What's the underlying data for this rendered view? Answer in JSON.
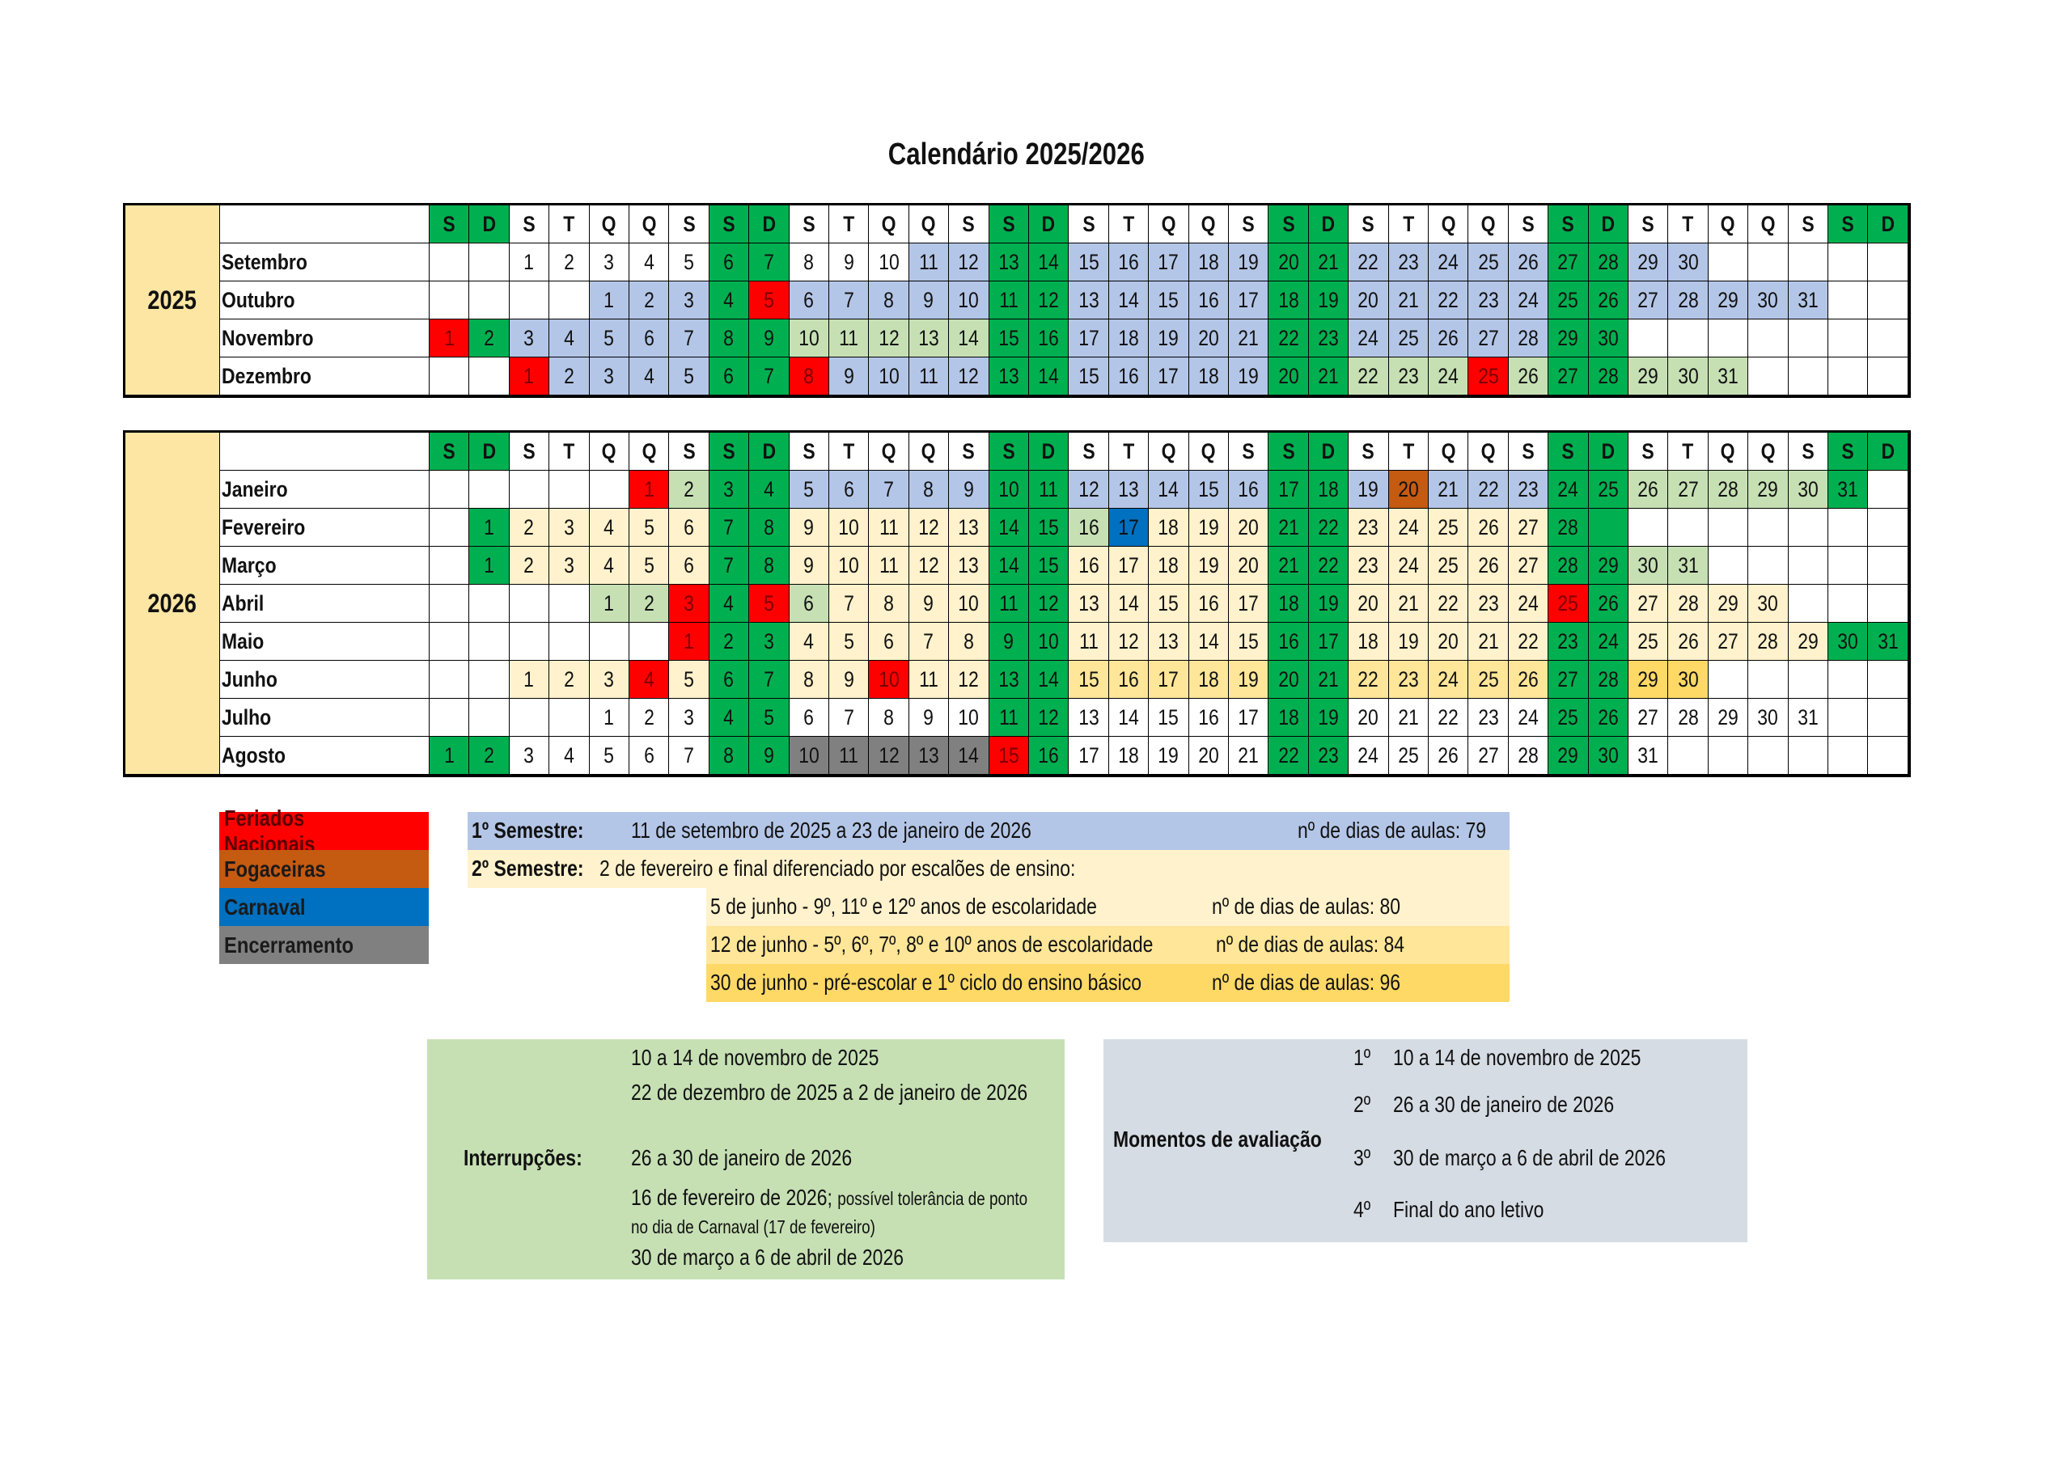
{
  "title": "Calendário 2025/2026",
  "weekdays": [
    "S",
    "D",
    "S",
    "T",
    "Q",
    "Q",
    "S",
    "S",
    "D",
    "S",
    "T",
    "Q",
    "Q",
    "S",
    "S",
    "D",
    "S",
    "T",
    "Q",
    "Q",
    "S",
    "S",
    "D",
    "S",
    "T",
    "Q",
    "Q",
    "S",
    "S",
    "D",
    "S",
    "T",
    "Q",
    "Q",
    "S",
    "S",
    "D"
  ],
  "header_fills": "ggwwwwwggwwwwwggwwwwwggwwwwwggwwwwwgg",
  "palette": {
    "w": "#ffffff",
    "g": "#00b050",
    "b": "#b4c6e7",
    "l": "#c6e0b4",
    "r": "#ff0000",
    "o": "#c55a11",
    "c": "#0070c0",
    "k": "#808080",
    "y": "#fff2cc",
    "m": "#ffe699",
    "d": "#ffd966"
  },
  "years": [
    {
      "year": "2025",
      "months": [
        {
          "name": "Setembro",
          "days": [
            null,
            null,
            1,
            2,
            3,
            4,
            5,
            6,
            7,
            8,
            9,
            10,
            11,
            12,
            13,
            14,
            15,
            16,
            17,
            18,
            19,
            20,
            21,
            22,
            23,
            24,
            25,
            26,
            27,
            28,
            29,
            30,
            null,
            null,
            null,
            null,
            null
          ],
          "fills": "wwwwwwwggwwwbbggbbbbbggbbbbbggbbwwwww"
        },
        {
          "name": "Outubro",
          "days": [
            null,
            null,
            null,
            null,
            1,
            2,
            3,
            4,
            5,
            6,
            7,
            8,
            9,
            10,
            11,
            12,
            13,
            14,
            15,
            16,
            17,
            18,
            19,
            20,
            21,
            22,
            23,
            24,
            25,
            26,
            27,
            28,
            29,
            30,
            31,
            null,
            null
          ],
          "fills": "wwwwbbbgrbbbbbggbbbbbggbbbbbggbbbbbww"
        },
        {
          "name": "Novembro",
          "days": [
            1,
            2,
            3,
            4,
            5,
            6,
            7,
            8,
            9,
            10,
            11,
            12,
            13,
            14,
            15,
            16,
            17,
            18,
            19,
            20,
            21,
            22,
            23,
            24,
            25,
            26,
            27,
            28,
            29,
            30,
            null,
            null,
            null,
            null,
            null,
            null,
            null
          ],
          "fills": "rgbbbbbgglllllggbbbbbggbbbbbggwwwwwww"
        },
        {
          "name": "Dezembro",
          "days": [
            null,
            null,
            1,
            2,
            3,
            4,
            5,
            6,
            7,
            8,
            9,
            10,
            11,
            12,
            13,
            14,
            15,
            16,
            17,
            18,
            19,
            20,
            21,
            22,
            23,
            24,
            25,
            26,
            27,
            28,
            29,
            30,
            31,
            null,
            null,
            null,
            null
          ],
          "fills": "wwrbbbbggrbbbbggbbbbbgglllrlgglllwwww"
        }
      ]
    },
    {
      "year": "2026",
      "months": [
        {
          "name": "Janeiro",
          "days": [
            null,
            null,
            null,
            null,
            null,
            1,
            2,
            3,
            4,
            5,
            6,
            7,
            8,
            9,
            10,
            11,
            12,
            13,
            14,
            15,
            16,
            17,
            18,
            19,
            20,
            21,
            22,
            23,
            24,
            25,
            26,
            27,
            28,
            29,
            30,
            31,
            null
          ],
          "fills": "wwwwwrlggbbbbbggbbbbbggbobbbgglllllgw"
        },
        {
          "name": "Fevereiro",
          "days": [
            null,
            1,
            2,
            3,
            4,
            5,
            6,
            7,
            8,
            9,
            10,
            11,
            12,
            13,
            14,
            15,
            16,
            17,
            18,
            19,
            20,
            21,
            22,
            23,
            24,
            25,
            26,
            27,
            28,
            null,
            null,
            null,
            null,
            null,
            null,
            null,
            null
          ],
          "fills": "wgyyyyyggyyyyygglcyyyggyyyyyggwwwwwww"
        },
        {
          "name": "Março",
          "days": [
            null,
            1,
            2,
            3,
            4,
            5,
            6,
            7,
            8,
            9,
            10,
            11,
            12,
            13,
            14,
            15,
            16,
            17,
            18,
            19,
            20,
            21,
            22,
            23,
            24,
            25,
            26,
            27,
            28,
            29,
            30,
            31,
            null,
            null,
            null,
            null,
            null
          ],
          "fills": "wgyyyyyggyyyyyggyyyyyggyyyyyggllwwwww"
        },
        {
          "name": "Abril",
          "days": [
            null,
            null,
            null,
            null,
            1,
            2,
            3,
            4,
            5,
            6,
            7,
            8,
            9,
            10,
            11,
            12,
            13,
            14,
            15,
            16,
            17,
            18,
            19,
            20,
            21,
            22,
            23,
            24,
            25,
            26,
            27,
            28,
            29,
            30,
            null,
            null,
            null
          ],
          "fills": "wwwwllrgrlyyyyggyyyyyggyyyyyrgyyyywww"
        },
        {
          "name": "Maio",
          "days": [
            null,
            null,
            null,
            null,
            null,
            null,
            1,
            2,
            3,
            4,
            5,
            6,
            7,
            8,
            9,
            10,
            11,
            12,
            13,
            14,
            15,
            16,
            17,
            18,
            19,
            20,
            21,
            22,
            23,
            24,
            25,
            26,
            27,
            28,
            29,
            30,
            31
          ],
          "fills": "wwwwwwrggyyyyyggyyyyyggyyyyyggyyyyygg"
        },
        {
          "name": "Junho",
          "days": [
            null,
            null,
            1,
            2,
            3,
            4,
            5,
            6,
            7,
            8,
            9,
            10,
            11,
            12,
            13,
            14,
            15,
            16,
            17,
            18,
            19,
            20,
            21,
            22,
            23,
            24,
            25,
            26,
            27,
            28,
            29,
            30,
            null,
            null,
            null,
            null,
            null
          ],
          "fills": "wwyyyryggyyryyggmmmmmggmmmmmggddwwwww"
        },
        {
          "name": "Julho",
          "days": [
            null,
            null,
            null,
            null,
            1,
            2,
            3,
            4,
            5,
            6,
            7,
            8,
            9,
            10,
            11,
            12,
            13,
            14,
            15,
            16,
            17,
            18,
            19,
            20,
            21,
            22,
            23,
            24,
            25,
            26,
            27,
            28,
            29,
            30,
            31,
            null,
            null
          ],
          "fills": "wwwwwwwggwwwwwggwwwwwggwwwwwggwwwwwww"
        },
        {
          "name": "Agosto",
          "days": [
            1,
            2,
            3,
            4,
            5,
            6,
            7,
            8,
            9,
            10,
            11,
            12,
            13,
            14,
            15,
            16,
            17,
            18,
            19,
            20,
            21,
            22,
            23,
            24,
            25,
            26,
            27,
            28,
            29,
            30,
            31,
            null,
            null,
            null,
            null,
            null,
            null
          ],
          "fills": "ggwwwwwggkkkkkrgwwwwwggwwwwwggwwwwwww"
        }
      ]
    }
  ],
  "legend": [
    {
      "label": "Feriados Nacionais",
      "color": "#ff0000"
    },
    {
      "label": "Fogaceiras",
      "color": "#c55a11"
    },
    {
      "label": "Carnaval",
      "color": "#0070c0"
    },
    {
      "label": "Encerramento",
      "color": "#808080"
    }
  ],
  "semesters": {
    "first": {
      "label": "1º Semestre:",
      "text": "11 de setembro de 2025 a 23 de janeiro de 2026",
      "days": "nº de dias de aulas: 79"
    },
    "second": {
      "label": "2º Semestre:",
      "text": "2 de fevereiro e final diferenciado por escalões de ensino:"
    },
    "endings": [
      {
        "text": "5 de junho - 9º, 11º e 12º anos de escolaridade",
        "days": "nº de dias de aulas: 80"
      },
      {
        "text": "12 de junho - 5º, 6º, 7º, 8º e 10º anos de escolaridade",
        "days": "nº de dias de aulas: 84"
      },
      {
        "text": "30 de junho - pré-escolar e 1º ciclo do ensino básico",
        "days": "nº de dias de aulas: 96"
      }
    ]
  },
  "interruptions": {
    "label": "Interrupções:",
    "items": [
      "10 a 14 de novembro de 2025",
      "22 de dezembro de 2025 a 2 de janeiro de 2026",
      "26 a 30 de janeiro de 2026",
      {
        "text": "16 de fevereiro de 2026;",
        "note": "possível tolerância de ponto no dia de Carnaval (17 de fevereiro)"
      },
      "30 de março a 6 de abril de 2026"
    ]
  },
  "evaluations": {
    "label": "Momentos de avaliação",
    "items": [
      {
        "n": "1º",
        "text": "10 a 14 de novembro de 2025"
      },
      {
        "n": "2º",
        "text": "26 a 30 de janeiro de 2026"
      },
      {
        "n": "3º",
        "text": "30 de março a 6 de abril de 2026"
      },
      {
        "n": "4º",
        "text": "Final do ano letivo"
      }
    ]
  }
}
